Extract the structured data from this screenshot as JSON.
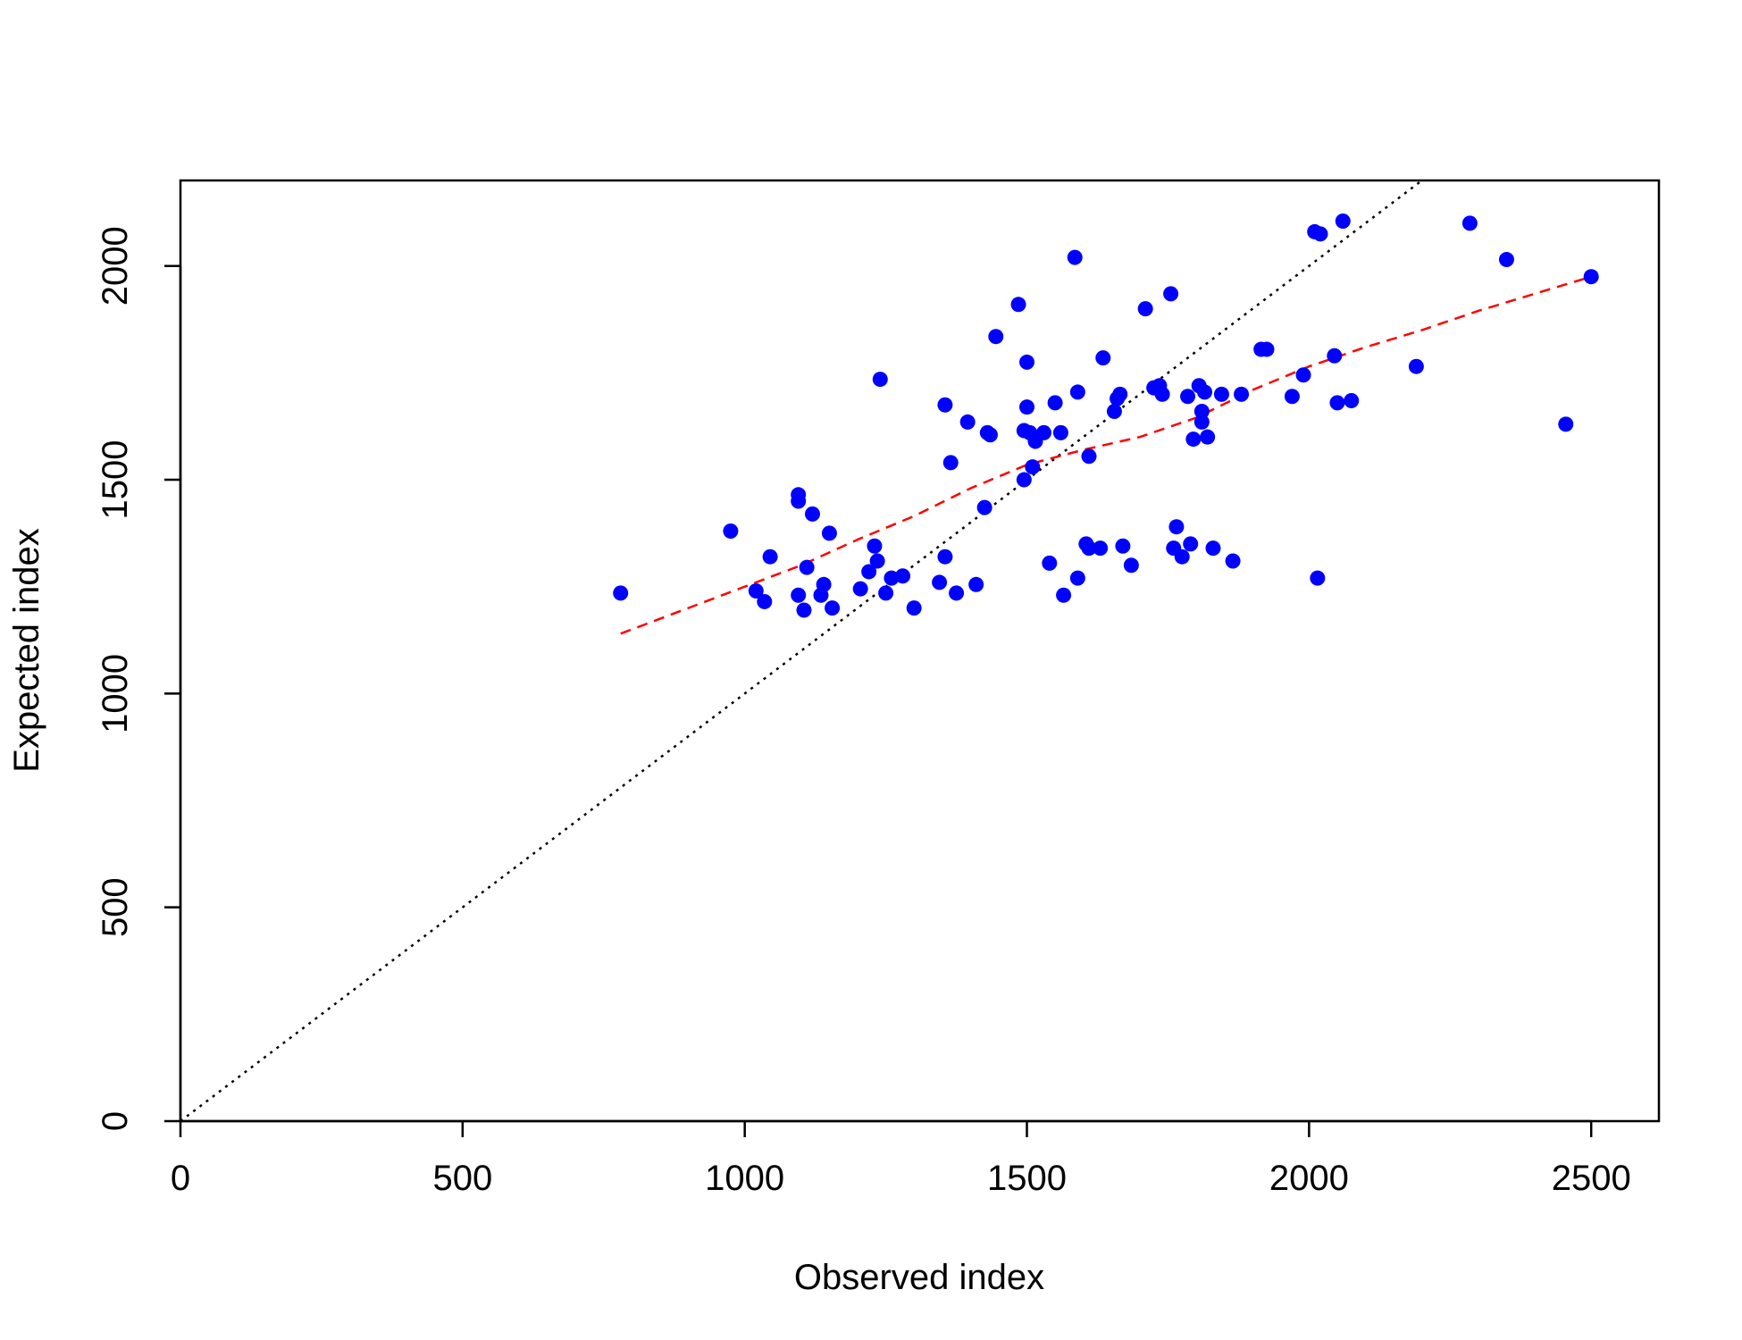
{
  "chart_data": {
    "type": "scatter",
    "title": "",
    "xlabel": "Observed index",
    "ylabel": "Expected index",
    "xlim": [
      0,
      2620
    ],
    "ylim": [
      0,
      2200
    ],
    "x_ticks": [
      0,
      500,
      1000,
      1500,
      2000,
      2500
    ],
    "y_ticks": [
      0,
      500,
      1000,
      1500,
      2000
    ],
    "grid": false,
    "legend": "none",
    "point_color": "#0000FF",
    "points": [
      [
        780,
        1235
      ],
      [
        975,
        1380
      ],
      [
        1020,
        1240
      ],
      [
        1035,
        1215
      ],
      [
        1045,
        1320
      ],
      [
        1095,
        1465
      ],
      [
        1095,
        1450
      ],
      [
        1095,
        1230
      ],
      [
        1105,
        1195
      ],
      [
        1110,
        1295
      ],
      [
        1120,
        1420
      ],
      [
        1135,
        1230
      ],
      [
        1140,
        1255
      ],
      [
        1150,
        1375
      ],
      [
        1155,
        1200
      ],
      [
        1205,
        1245
      ],
      [
        1220,
        1285
      ],
      [
        1230,
        1345
      ],
      [
        1235,
        1310
      ],
      [
        1240,
        1735
      ],
      [
        1250,
        1235
      ],
      [
        1260,
        1270
      ],
      [
        1280,
        1275
      ],
      [
        1300,
        1200
      ],
      [
        1345,
        1260
      ],
      [
        1355,
        1320
      ],
      [
        1355,
        1675
      ],
      [
        1365,
        1540
      ],
      [
        1375,
        1235
      ],
      [
        1395,
        1635
      ],
      [
        1410,
        1255
      ],
      [
        1425,
        1435
      ],
      [
        1430,
        1610
      ],
      [
        1435,
        1605
      ],
      [
        1445,
        1835
      ],
      [
        1485,
        1910
      ],
      [
        1495,
        1500
      ],
      [
        1495,
        1615
      ],
      [
        1500,
        1775
      ],
      [
        1500,
        1670
      ],
      [
        1505,
        1610
      ],
      [
        1510,
        1530
      ],
      [
        1515,
        1590
      ],
      [
        1530,
        1610
      ],
      [
        1540,
        1305
      ],
      [
        1550,
        1680
      ],
      [
        1560,
        1610
      ],
      [
        1565,
        1230
      ],
      [
        1585,
        2020
      ],
      [
        1590,
        1270
      ],
      [
        1590,
        1705
      ],
      [
        1605,
        1350
      ],
      [
        1610,
        1340
      ],
      [
        1610,
        1555
      ],
      [
        1630,
        1340
      ],
      [
        1635,
        1785
      ],
      [
        1655,
        1660
      ],
      [
        1660,
        1690
      ],
      [
        1665,
        1700
      ],
      [
        1670,
        1345
      ],
      [
        1685,
        1300
      ],
      [
        1710,
        1900
      ],
      [
        1725,
        1715
      ],
      [
        1735,
        1720
      ],
      [
        1740,
        1700
      ],
      [
        1755,
        1935
      ],
      [
        1760,
        1340
      ],
      [
        1765,
        1390
      ],
      [
        1775,
        1320
      ],
      [
        1785,
        1695
      ],
      [
        1790,
        1350
      ],
      [
        1795,
        1595
      ],
      [
        1805,
        1720
      ],
      [
        1810,
        1660
      ],
      [
        1810,
        1635
      ],
      [
        1815,
        1705
      ],
      [
        1820,
        1600
      ],
      [
        1830,
        1340
      ],
      [
        1845,
        1700
      ],
      [
        1865,
        1310
      ],
      [
        1880,
        1700
      ],
      [
        1915,
        1805
      ],
      [
        1925,
        1805
      ],
      [
        1970,
        1695
      ],
      [
        1990,
        1745
      ],
      [
        2010,
        2080
      ],
      [
        2015,
        1270
      ],
      [
        2020,
        2075
      ],
      [
        2045,
        1790
      ],
      [
        2050,
        1680
      ],
      [
        2060,
        2105
      ],
      [
        2075,
        1685
      ],
      [
        2190,
        1765
      ],
      [
        2285,
        2100
      ],
      [
        2350,
        2015
      ],
      [
        2455,
        1630
      ],
      [
        2500,
        1975
      ]
    ],
    "smooth_line": {
      "color": "#FF0000",
      "style": "dashed",
      "points": [
        [
          780,
          1140
        ],
        [
          900,
          1200
        ],
        [
          1000,
          1250
        ],
        [
          1100,
          1300
        ],
        [
          1200,
          1360
        ],
        [
          1300,
          1415
        ],
        [
          1400,
          1480
        ],
        [
          1500,
          1535
        ],
        [
          1600,
          1570
        ],
        [
          1700,
          1600
        ],
        [
          1800,
          1645
        ],
        [
          1900,
          1710
        ],
        [
          2000,
          1765
        ],
        [
          2100,
          1810
        ],
        [
          2200,
          1850
        ],
        [
          2300,
          1895
        ],
        [
          2400,
          1935
        ],
        [
          2500,
          1975
        ]
      ]
    },
    "reference_line": {
      "color": "#000000",
      "style": "dotted",
      "slope": 1,
      "intercept": 0
    }
  }
}
